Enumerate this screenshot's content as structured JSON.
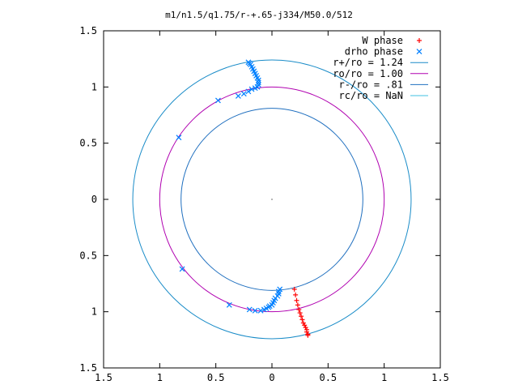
{
  "chart_data": {
    "type": "scatter",
    "title": "m1/n1.5/q1.75/r-+.65-j334/M50.0/512",
    "xlabel": "",
    "ylabel": "",
    "xlim": [
      -1.5,
      1.5
    ],
    "ylim": [
      -1.5,
      1.5
    ],
    "x_ticks": [
      -1.5,
      -1,
      -0.5,
      0,
      0.5,
      1,
      1.5
    ],
    "y_ticks": [
      -1.5,
      -1,
      -0.5,
      0,
      0.5,
      1,
      1.5
    ],
    "x_tick_labels": [
      "1.5",
      "1",
      "0.5",
      "0",
      "0.5",
      "1",
      "1.5"
    ],
    "y_tick_labels": [
      "1.5",
      "1",
      "0.5",
      "0",
      "0.5",
      "1",
      "1.5"
    ],
    "grid": false,
    "legend_position": "top-right",
    "legend": [
      {
        "label": "W phase",
        "marker": "+",
        "color": "#ff0000"
      },
      {
        "label": "drho phase",
        "marker": "x",
        "color": "#0080ff"
      },
      {
        "label": "r+/ro = 1.24",
        "marker": "line",
        "color": "#1a8cc8"
      },
      {
        "label": "ro/ro = 1.00",
        "marker": "line",
        "color": "#b000b0"
      },
      {
        "label": "r-/ro = .81",
        "marker": "line",
        "color": "#1f6fbf"
      },
      {
        "label": "rc/ro = NaN",
        "marker": "line",
        "color": "#40c0e0"
      }
    ],
    "circles": [
      {
        "name": "r+/ro = 1.24",
        "radius": 1.24,
        "color": "#1a8cc8"
      },
      {
        "name": "ro/ro = 1.00",
        "radius": 1.0,
        "color": "#b000b0"
      },
      {
        "name": "r-/ro = .81",
        "radius": 0.81,
        "color": "#1f6fbf"
      }
    ],
    "series": [
      {
        "name": "W phase",
        "marker": "+",
        "color": "#ff0000",
        "x": [
          0.2,
          0.21,
          0.22,
          0.23,
          0.24,
          0.25,
          0.26,
          0.27,
          0.28,
          0.29,
          0.3,
          0.31,
          0.31,
          0.32,
          0.32
        ],
        "y": [
          -0.8,
          -0.85,
          -0.9,
          -0.94,
          -0.98,
          -1.01,
          -1.04,
          -1.07,
          -1.1,
          -1.12,
          -1.14,
          -1.16,
          -1.18,
          -1.2,
          -1.21
        ]
      },
      {
        "name": "drho phase",
        "marker": "x",
        "color": "#0080ff",
        "x": [
          -0.21,
          -0.2,
          -0.19,
          -0.18,
          -0.17,
          -0.16,
          -0.15,
          -0.14,
          -0.13,
          -0.12,
          -0.12,
          -0.12,
          -0.13,
          -0.15,
          -0.18,
          -0.21,
          -0.25,
          -0.3,
          -0.48,
          -0.83,
          -0.8,
          -0.38,
          -0.2,
          -0.15,
          -0.1,
          -0.07,
          -0.05,
          -0.03,
          -0.02,
          0.0,
          0.01,
          0.02,
          0.03,
          0.05,
          0.06,
          0.06,
          0.07
        ],
        "y": [
          1.22,
          1.21,
          1.2,
          1.18,
          1.16,
          1.14,
          1.12,
          1.1,
          1.08,
          1.06,
          1.04,
          1.02,
          1.0,
          0.99,
          0.98,
          0.96,
          0.94,
          0.92,
          0.88,
          0.55,
          -0.62,
          -0.94,
          -0.98,
          -0.99,
          -0.99,
          -0.98,
          -0.97,
          -0.96,
          -0.95,
          -0.94,
          -0.92,
          -0.9,
          -0.88,
          -0.86,
          -0.84,
          -0.82,
          -0.8
        ]
      }
    ]
  }
}
